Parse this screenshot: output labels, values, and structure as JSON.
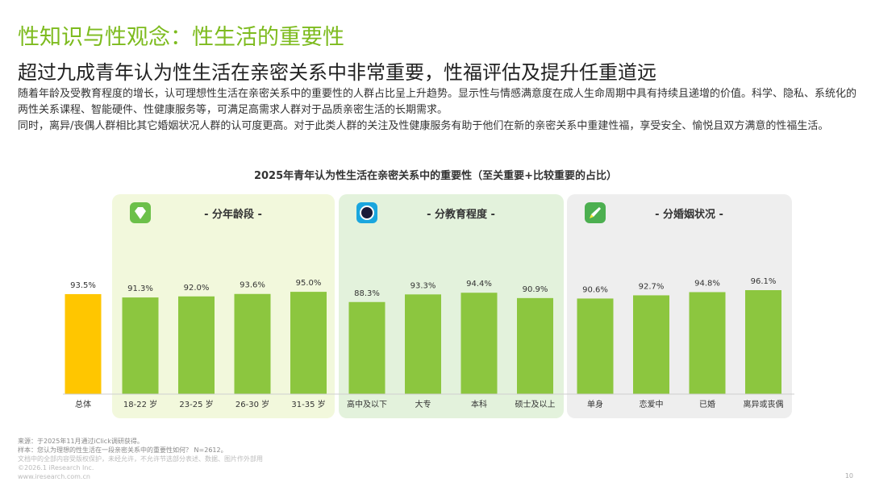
{
  "header": {
    "section_title": "性知识与性观念：性生活的重要性",
    "headline": "超过九成青年认为性生活在亲密关系中非常重要，性福评估及提升任重道远",
    "paragraph_1": "随着年龄及受教育程度的增长，认可理想性生活在亲密关系中的重要性的人群占比呈上升趋势。显示性与情感满意度在成人生命周期中具有持续且递增的价值。科学、隐私、系统化的两性关系课程、智能硬件、性健康服务等，可满足高需求人群对于品质亲密生活的长期需求。",
    "paragraph_2": "同时，离异/丧偶人群相比其它婚姻状况人群的认可度更高。对于此类人群的关注及性健康服务有助于他们在新的亲密关系中重建性福，享受安全、愉悦且双方满意的性福生活。"
  },
  "chart_data": {
    "type": "bar",
    "title": "2025年青年认为性生活在亲密关系中的重要性（至关重要+比较重要的占比）",
    "unit": "%",
    "ylim": [
      0,
      100
    ],
    "grid": false,
    "total": {
      "category": "总体",
      "value": 93.5,
      "label": "93.5%",
      "color": "#ffc600"
    },
    "groups": [
      {
        "name": "- 分年龄段 -",
        "icon": "diamond-icon",
        "panel_color": "#f2f8dc",
        "icon_color": "#6cc04a",
        "categories": [
          "18-22 岁",
          "23-25 岁",
          "26-30 岁",
          "31-35 岁"
        ],
        "values": [
          91.3,
          92.0,
          93.6,
          95.0
        ],
        "labels": [
          "91.3%",
          "92.0%",
          "93.6%",
          "95.0%"
        ]
      },
      {
        "name": "- 分教育程度 -",
        "icon": "camera-lens-icon",
        "panel_color": "#e3f2dc",
        "icon_color": "#1aa6de",
        "categories": [
          "高中及以下",
          "大专",
          "本科",
          "硕士及以上"
        ],
        "values": [
          88.3,
          93.3,
          94.4,
          90.9
        ],
        "labels": [
          "88.3%",
          "93.3%",
          "94.4%",
          "90.9%"
        ]
      },
      {
        "name": "- 分婚姻状况 -",
        "icon": "rocket-icon",
        "panel_color": "#eeeeee",
        "icon_color": "#4caf50",
        "categories": [
          "单身",
          "恋爱中",
          "已婚",
          "离异或丧偶"
        ],
        "values": [
          90.6,
          92.7,
          94.8,
          96.1
        ],
        "labels": [
          "90.6%",
          "92.7%",
          "94.8%",
          "96.1%"
        ]
      }
    ],
    "bar_color": "#8cc63f"
  },
  "footer": {
    "source": "来源：于2025年11月通过iClick调研获得。",
    "sample": "样本：您认为理想的性生活在一段亲密关系中的重要性如何？ N=2612。",
    "fine_1": "文档中的全部内容受版权保护，未经允许，不允许节选部分表述、数据、图片作外部用",
    "fine_2": "©2026.1 iResearch Inc.",
    "fine_3": "www.iresearch.com.cn",
    "page_number": "10"
  }
}
